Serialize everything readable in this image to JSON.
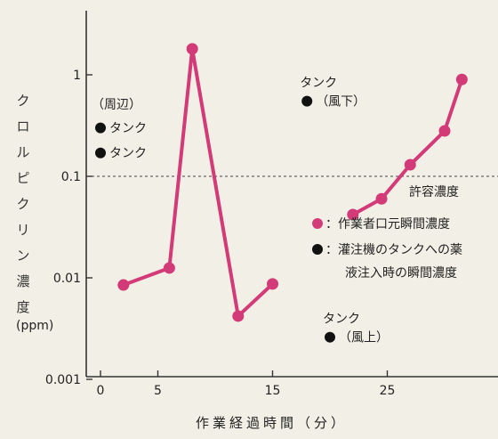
{
  "chart_data": {
    "type": "line",
    "yscale": "log",
    "ylim": [
      0.001,
      5
    ],
    "xlim": [
      -2,
      31
    ],
    "xticks": [
      0,
      5,
      15,
      25
    ],
    "ytick_labels": [
      "0.001",
      "0.01",
      "0.1",
      "1"
    ],
    "xlabel": "作業経過時間（分）",
    "ylabel": "クロルピクリン濃度",
    "ylabel_unit": "(ppm)",
    "series": [
      {
        "label": "作業者口元瞬間濃度",
        "color": "#d23a78",
        "segments": [
          {
            "x": [
              2,
              6,
              8,
              12,
              15
            ],
            "y": [
              0.0085,
              0.0125,
              1.8,
              0.0042,
              0.0087
            ]
          },
          {
            "x": [
              22,
              24.5,
              27,
              30,
              31.5
            ],
            "y": [
              0.042,
              0.06,
              0.13,
              0.28,
              0.9
            ]
          }
        ]
      },
      {
        "label": "灌注機のタンクへの薬液注入時の瞬間濃度",
        "color": "#111111",
        "points": [
          {
            "x": 0,
            "y": 0.3,
            "label": "タンク"
          },
          {
            "x": 0,
            "y": 0.17,
            "label": "タンク"
          },
          {
            "x": 18,
            "y": 0.55,
            "label": "タンク",
            "sub": "（風下）"
          },
          {
            "x": 20,
            "y": 0.0026,
            "label": "タンク",
            "sub": "（風上）"
          }
        ]
      }
    ],
    "group_label_surroundings": "（周辺）",
    "reference_line": {
      "y": 0.1,
      "label": "許容濃度",
      "style": "dashed"
    },
    "legend": [
      {
        "marker": "pink-dot",
        "text": "：作業者口元瞬間濃度"
      },
      {
        "marker": "black-dot",
        "text": "：灌注機のタンクへの薬"
      },
      {
        "marker": "none",
        "text": "液注入時の瞬間濃度"
      }
    ]
  }
}
